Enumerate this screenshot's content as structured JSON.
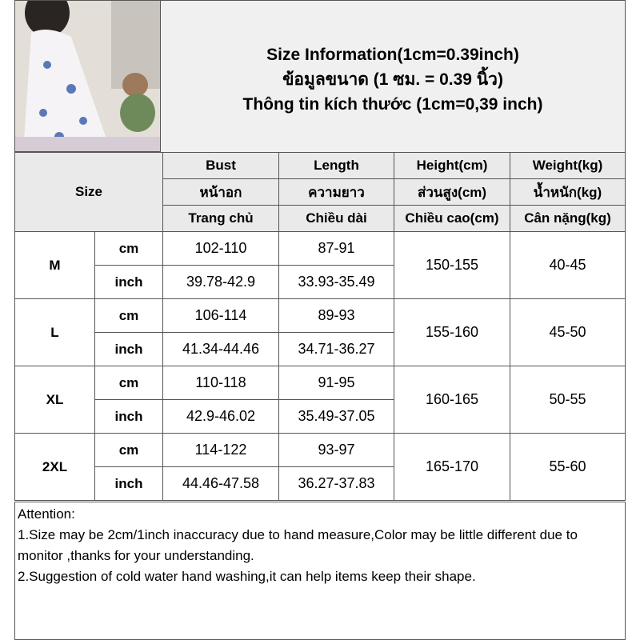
{
  "title": {
    "line1": "Size Information(1cm=0.39inch)",
    "line2": "ข้อมูลขนาด (1 ซม. = 0.39 นิ้ว)",
    "line3": "Thông tin kích thước (1cm=0,39 inch)"
  },
  "table": {
    "size_label": "Size",
    "headers": [
      [
        "Bust",
        "Length",
        "Height(cm)",
        "Weight(kg)"
      ],
      [
        "หน้าอก",
        "ความยาว",
        "ส่วนสูง(cm)",
        "น้ำหนัก(kg)"
      ],
      [
        "Trang chủ",
        "Chiều dài",
        "Chiều cao(cm)",
        "Cân nặng(kg)"
      ]
    ],
    "rows": [
      {
        "size": "M",
        "cm": {
          "unit": "cm",
          "bust": "102-110",
          "length": "87-91"
        },
        "inch": {
          "unit": "inch",
          "bust": "39.78-42.9",
          "length": "33.93-35.49"
        },
        "height": "150-155",
        "weight": "40-45"
      },
      {
        "size": "L",
        "cm": {
          "unit": "cm",
          "bust": "106-114",
          "length": "89-93"
        },
        "inch": {
          "unit": "inch",
          "bust": "41.34-44.46",
          "length": "34.71-36.27"
        },
        "height": "155-160",
        "weight": "45-50"
      },
      {
        "size": "XL",
        "cm": {
          "unit": "cm",
          "bust": "110-118",
          "length": "91-95"
        },
        "inch": {
          "unit": "inch",
          "bust": "42.9-46.02",
          "length": "35.49-37.05"
        },
        "height": "160-165",
        "weight": "50-55"
      },
      {
        "size": "2XL",
        "cm": {
          "unit": "cm",
          "bust": "114-122",
          "length": "93-97"
        },
        "inch": {
          "unit": "inch",
          "bust": "44.46-47.58",
          "length": "36.27-37.83"
        },
        "height": "165-170",
        "weight": "55-60"
      }
    ]
  },
  "notes": {
    "heading": "Attention:",
    "items": [
      "1.Size may be 2cm/1inch inaccuracy due to hand measure,Color may be little different due to monitor ,thanks for your understanding.",
      "2.Suggestion of cold water hand washing,it can help items keep their shape."
    ]
  }
}
